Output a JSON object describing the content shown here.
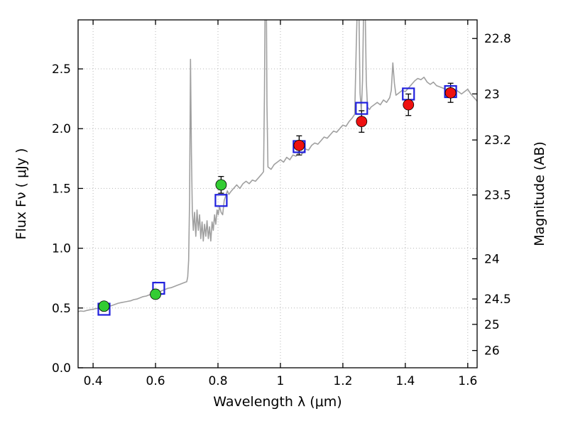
{
  "chart_data": {
    "type": "line",
    "title": "",
    "xlabel": "Wavelength  λ (μm)",
    "ylabel_left": "Flux  Fν  ( μJy )",
    "ylabel_right": "Magnitude (AB)",
    "xlim": [
      0.352,
      1.63
    ],
    "ylim": [
      0,
      2.91
    ],
    "grid": true,
    "legend": false,
    "x_ticks": [
      0.4,
      0.6,
      0.8,
      1.0,
      1.2,
      1.4,
      1.6
    ],
    "x_tick_labels": [
      "0.4",
      "0.6",
      "0.8",
      "1",
      "1.2",
      "1.4",
      "1.6"
    ],
    "y_ticks": [
      0.0,
      0.5,
      1.0,
      1.5,
      2.0,
      2.5
    ],
    "y_tick_labels": [
      "0.0",
      "0.5",
      "1.0",
      "1.5",
      "2.0",
      "2.5"
    ],
    "mag_ticks": [
      22.8,
      23,
      23.2,
      23.5,
      24,
      24.5,
      25,
      26
    ],
    "mag_tick_labels": [
      "22.8",
      "23",
      "23.2",
      "23.5",
      "24",
      "24.5",
      "25",
      "26"
    ],
    "mag_zeropoint": 23.9,
    "colors": {
      "spectrum": "#a0a0a0",
      "model_square": "#2020dd",
      "observed_green": "#33cc33",
      "observed_red": "#ee1111",
      "errorbar": "#000000",
      "grid": "#b5b5b5",
      "frame": "#000000"
    },
    "observed_points": [
      {
        "x": 0.435,
        "y": 0.515,
        "yerr": 0.035,
        "color": "green"
      },
      {
        "x": 0.6,
        "y": 0.615,
        "yerr": 0.03,
        "color": "green"
      },
      {
        "x": 0.81,
        "y": 1.53,
        "yerr": 0.07,
        "color": "green"
      },
      {
        "x": 1.06,
        "y": 1.86,
        "yerr": 0.08,
        "color": "red"
      },
      {
        "x": 1.26,
        "y": 2.06,
        "yerr": 0.09,
        "color": "red"
      },
      {
        "x": 1.41,
        "y": 2.2,
        "yerr": 0.09,
        "color": "red"
      },
      {
        "x": 1.545,
        "y": 2.3,
        "yerr": 0.08,
        "color": "red"
      }
    ],
    "model_points": [
      {
        "x": 0.435,
        "y": 0.49
      },
      {
        "x": 0.61,
        "y": 0.665
      },
      {
        "x": 0.81,
        "y": 1.4
      },
      {
        "x": 1.06,
        "y": 1.85
      },
      {
        "x": 1.26,
        "y": 2.17
      },
      {
        "x": 1.41,
        "y": 2.29
      },
      {
        "x": 1.545,
        "y": 2.31
      }
    ],
    "spectrum": [
      [
        0.352,
        0.47
      ],
      [
        0.36,
        0.475
      ],
      [
        0.37,
        0.472
      ],
      [
        0.38,
        0.48
      ],
      [
        0.39,
        0.485
      ],
      [
        0.4,
        0.49
      ],
      [
        0.41,
        0.495
      ],
      [
        0.42,
        0.5
      ],
      [
        0.43,
        0.505
      ],
      [
        0.44,
        0.51
      ],
      [
        0.45,
        0.515
      ],
      [
        0.46,
        0.52
      ],
      [
        0.47,
        0.53
      ],
      [
        0.48,
        0.54
      ],
      [
        0.49,
        0.545
      ],
      [
        0.5,
        0.55
      ],
      [
        0.51,
        0.555
      ],
      [
        0.52,
        0.56
      ],
      [
        0.53,
        0.57
      ],
      [
        0.54,
        0.575
      ],
      [
        0.55,
        0.585
      ],
      [
        0.56,
        0.595
      ],
      [
        0.57,
        0.6
      ],
      [
        0.58,
        0.61
      ],
      [
        0.59,
        0.615
      ],
      [
        0.6,
        0.62
      ],
      [
        0.61,
        0.63
      ],
      [
        0.62,
        0.645
      ],
      [
        0.63,
        0.655
      ],
      [
        0.64,
        0.665
      ],
      [
        0.65,
        0.67
      ],
      [
        0.66,
        0.68
      ],
      [
        0.67,
        0.69
      ],
      [
        0.68,
        0.7
      ],
      [
        0.69,
        0.71
      ],
      [
        0.7,
        0.72
      ],
      [
        0.703,
        0.76
      ],
      [
        0.706,
        0.9
      ],
      [
        0.709,
        1.4
      ],
      [
        0.712,
        2.58
      ],
      [
        0.715,
        1.8
      ],
      [
        0.718,
        1.3
      ],
      [
        0.721,
        1.15
      ],
      [
        0.725,
        1.3
      ],
      [
        0.729,
        1.1
      ],
      [
        0.733,
        1.32
      ],
      [
        0.737,
        1.15
      ],
      [
        0.741,
        1.28
      ],
      [
        0.745,
        1.08
      ],
      [
        0.749,
        1.22
      ],
      [
        0.753,
        1.06
      ],
      [
        0.757,
        1.2
      ],
      [
        0.761,
        1.1
      ],
      [
        0.765,
        1.23
      ],
      [
        0.769,
        1.08
      ],
      [
        0.773,
        1.18
      ],
      [
        0.777,
        1.06
      ],
      [
        0.781,
        1.22
      ],
      [
        0.785,
        1.15
      ],
      [
        0.789,
        1.28
      ],
      [
        0.793,
        1.2
      ],
      [
        0.797,
        1.32
      ],
      [
        0.801,
        1.28
      ],
      [
        0.805,
        1.35
      ],
      [
        0.81,
        1.3
      ],
      [
        0.815,
        1.28
      ],
      [
        0.82,
        1.4
      ],
      [
        0.825,
        1.44
      ],
      [
        0.83,
        1.48
      ],
      [
        0.835,
        1.45
      ],
      [
        0.84,
        1.47
      ],
      [
        0.85,
        1.5
      ],
      [
        0.86,
        1.53
      ],
      [
        0.87,
        1.5
      ],
      [
        0.88,
        1.54
      ],
      [
        0.89,
        1.56
      ],
      [
        0.9,
        1.54
      ],
      [
        0.91,
        1.57
      ],
      [
        0.92,
        1.56
      ],
      [
        0.93,
        1.59
      ],
      [
        0.94,
        1.62
      ],
      [
        0.946,
        1.64
      ],
      [
        0.949,
        2.3
      ],
      [
        0.951,
        3.05
      ],
      [
        0.955,
        3.05
      ],
      [
        0.957,
        2.2
      ],
      [
        0.96,
        1.68
      ],
      [
        0.97,
        1.66
      ],
      [
        0.98,
        1.7
      ],
      [
        0.99,
        1.72
      ],
      [
        1.0,
        1.74
      ],
      [
        1.01,
        1.72
      ],
      [
        1.02,
        1.76
      ],
      [
        1.03,
        1.74
      ],
      [
        1.04,
        1.78
      ],
      [
        1.05,
        1.77
      ],
      [
        1.06,
        1.81
      ],
      [
        1.07,
        1.79
      ],
      [
        1.08,
        1.83
      ],
      [
        1.09,
        1.82
      ],
      [
        1.1,
        1.86
      ],
      [
        1.11,
        1.88
      ],
      [
        1.12,
        1.87
      ],
      [
        1.13,
        1.9
      ],
      [
        1.14,
        1.93
      ],
      [
        1.15,
        1.92
      ],
      [
        1.16,
        1.95
      ],
      [
        1.17,
        1.98
      ],
      [
        1.18,
        1.97
      ],
      [
        1.19,
        2.0
      ],
      [
        1.2,
        2.03
      ],
      [
        1.21,
        2.02
      ],
      [
        1.22,
        2.06
      ],
      [
        1.23,
        2.09
      ],
      [
        1.238,
        2.12
      ],
      [
        1.243,
        2.7
      ],
      [
        1.247,
        3.1
      ],
      [
        1.251,
        3.1
      ],
      [
        1.255,
        2.3
      ],
      [
        1.259,
        2.15
      ],
      [
        1.263,
        2.4
      ],
      [
        1.267,
        3.1
      ],
      [
        1.271,
        3.1
      ],
      [
        1.275,
        2.4
      ],
      [
        1.279,
        2.18
      ],
      [
        1.285,
        2.16
      ],
      [
        1.29,
        2.18
      ],
      [
        1.3,
        2.2
      ],
      [
        1.31,
        2.22
      ],
      [
        1.32,
        2.2
      ],
      [
        1.33,
        2.24
      ],
      [
        1.34,
        2.22
      ],
      [
        1.35,
        2.26
      ],
      [
        1.355,
        2.32
      ],
      [
        1.36,
        2.55
      ],
      [
        1.365,
        2.38
      ],
      [
        1.37,
        2.28
      ],
      [
        1.38,
        2.3
      ],
      [
        1.39,
        2.32
      ],
      [
        1.4,
        2.31
      ],
      [
        1.41,
        2.34
      ],
      [
        1.42,
        2.37
      ],
      [
        1.43,
        2.4
      ],
      [
        1.44,
        2.42
      ],
      [
        1.45,
        2.41
      ],
      [
        1.46,
        2.43
      ],
      [
        1.47,
        2.39
      ],
      [
        1.48,
        2.37
      ],
      [
        1.49,
        2.39
      ],
      [
        1.5,
        2.36
      ],
      [
        1.51,
        2.35
      ],
      [
        1.52,
        2.34
      ],
      [
        1.53,
        2.33
      ],
      [
        1.54,
        2.34
      ],
      [
        1.55,
        2.31
      ],
      [
        1.56,
        2.33
      ],
      [
        1.57,
        2.31
      ],
      [
        1.58,
        2.29
      ],
      [
        1.59,
        2.31
      ],
      [
        1.6,
        2.33
      ],
      [
        1.61,
        2.29
      ],
      [
        1.62,
        2.26
      ],
      [
        1.63,
        2.23
      ]
    ]
  }
}
